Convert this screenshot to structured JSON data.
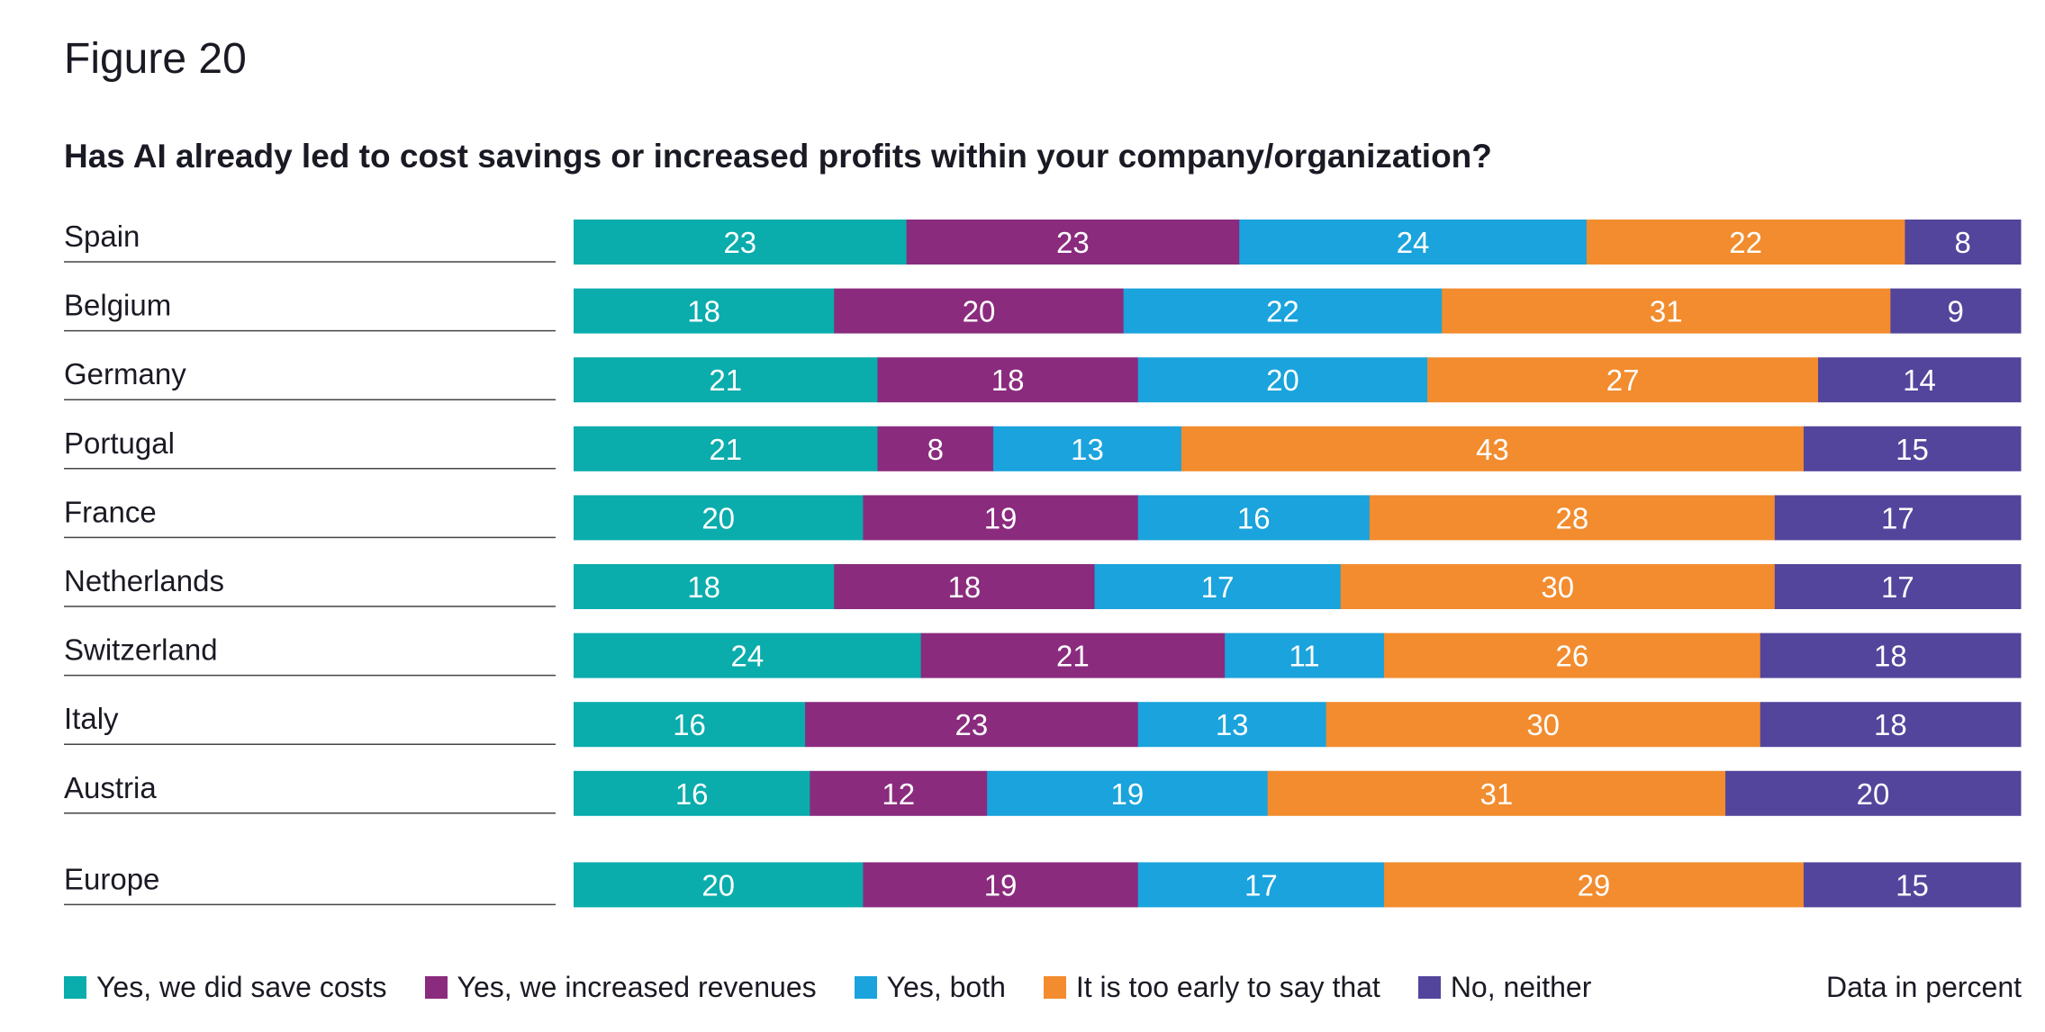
{
  "figure_label": "Figure 20",
  "chart_data": {
    "type": "bar",
    "orientation": "horizontal",
    "stacked": true,
    "title": "Has AI already led to cost savings or increased profits within your company/organization?",
    "categories": [
      "Spain",
      "Belgium",
      "Germany",
      "Portugal",
      "France",
      "Netherlands",
      "Switzerland",
      "Italy",
      "Austria",
      "Europe"
    ],
    "series": [
      {
        "name": "Yes, we did save costs",
        "color": "#0aacac",
        "values": [
          23,
          18,
          21,
          21,
          20,
          18,
          24,
          16,
          16,
          20
        ]
      },
      {
        "name": "Yes, we increased revenues",
        "color": "#8a2b7e",
        "values": [
          23,
          20,
          18,
          8,
          19,
          18,
          21,
          23,
          12,
          19
        ]
      },
      {
        "name": "Yes, both",
        "color": "#1aa3dc",
        "values": [
          24,
          22,
          20,
          13,
          16,
          17,
          11,
          13,
          19,
          17
        ]
      },
      {
        "name": "It is too early to say that",
        "color": "#f28c2e",
        "values": [
          22,
          31,
          27,
          43,
          28,
          30,
          26,
          30,
          31,
          29
        ]
      },
      {
        "name": "No, neither",
        "color": "#53459c",
        "values": [
          8,
          9,
          14,
          15,
          17,
          17,
          18,
          18,
          20,
          15
        ]
      }
    ],
    "legend_position": "bottom",
    "grid": false,
    "units_note": "Data in percent"
  }
}
